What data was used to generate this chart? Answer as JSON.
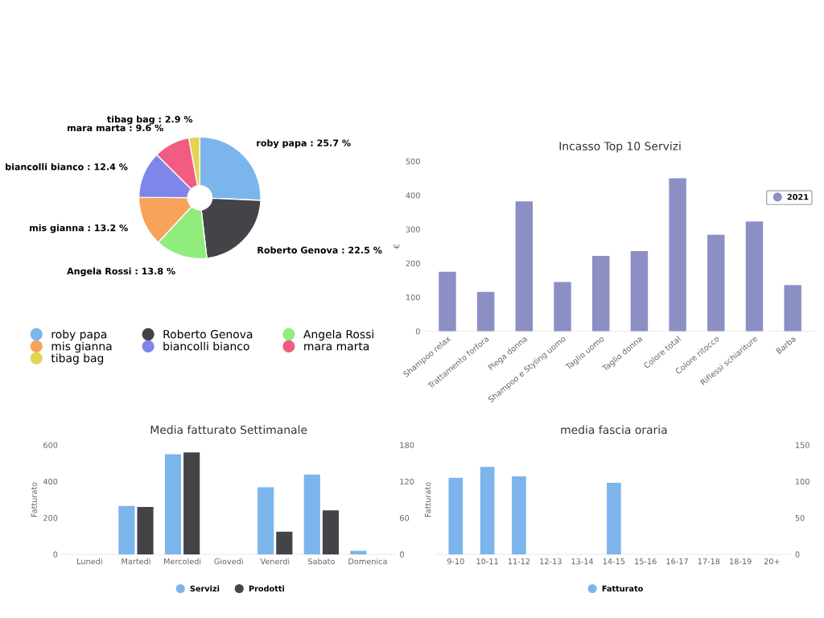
{
  "chart_data": [
    {
      "type": "donut",
      "categories": [
        "roby papa",
        "Roberto Genova",
        "Angela Rossi",
        "mis gianna",
        "biancolli bianco",
        "mara marta",
        "tibag bag"
      ],
      "values": [
        25.7,
        22.5,
        13.8,
        13.2,
        12.4,
        9.6,
        2.9
      ],
      "colors": [
        "#7cb5ec",
        "#434348",
        "#90ed7d",
        "#f7a35c",
        "#8085e9",
        "#f15c80",
        "#e4d354"
      ],
      "value_labels": [
        "roby papa : 25.7 %",
        "Roberto Genova : 22.5 %",
        "Angela Rossi : 13.8 %",
        "mis gianna : 13.2 %",
        "biancolli bianco : 12.4 %",
        "mara marta : 9.6 %",
        "tibag bag : 2.9 %"
      ],
      "legend": "bottom"
    },
    {
      "type": "bar",
      "title": "Incasso Top 10 Servizi",
      "ylabel": "€",
      "categories": [
        "Shampoo relax",
        "Trattamento forfora",
        "Piega donna",
        "Shampoo e Styling uomo",
        "Taglio uomo",
        "Taglio donna",
        "Colore total",
        "Colore ritocco",
        "Riflessi schiariture",
        "Barba"
      ],
      "series": [
        {
          "name": "2021",
          "color": "#8c8fc4",
          "values": [
            175,
            116,
            382,
            145,
            222,
            236,
            450,
            284,
            323,
            136
          ]
        }
      ],
      "ylim": [
        0,
        500
      ],
      "yticks": [
        0,
        100,
        200,
        300,
        400,
        500
      ],
      "legend": "top right"
    },
    {
      "type": "bar",
      "title": "Media fatturato Settimanale",
      "ylabel": "Fatturato",
      "categories": [
        "Lunedi",
        "Martedi",
        "Mercoledi",
        "Giovedi",
        "Venerdi",
        "Sabato",
        "Domenica"
      ],
      "series": [
        {
          "name": "Servizi",
          "color": "#7cb5ec",
          "values": [
            0,
            265,
            549,
            0,
            368,
            438,
            19
          ]
        },
        {
          "name": "Prodotti",
          "color": "#434348",
          "values": [
            0,
            260,
            559,
            0,
            124,
            241,
            0
          ]
        }
      ],
      "ylim": [
        0,
        600
      ],
      "yticks": [
        0,
        200,
        400,
        600
      ],
      "y2lim": [
        0,
        180
      ],
      "y2ticks": [
        0,
        60,
        120,
        180
      ],
      "legend": "bottom"
    },
    {
      "type": "bar",
      "title": "media fascia oraria",
      "ylabel": "Fatturato",
      "categories": [
        "9-10",
        "10-11",
        "11-12",
        "12-13",
        "13-14",
        "14-15",
        "15-16",
        "16-17",
        "17-18",
        "18-19",
        "20+"
      ],
      "series": [
        {
          "name": "Fatturato",
          "color": "#7cb5ec",
          "axis": "y2",
          "values": [
            105,
            120,
            107,
            0,
            0,
            98,
            0,
            0,
            0,
            0,
            0
          ]
        }
      ],
      "y2lim": [
        0,
        150
      ],
      "y2ticks": [
        0,
        50,
        100,
        150
      ],
      "legend": "bottom"
    }
  ]
}
